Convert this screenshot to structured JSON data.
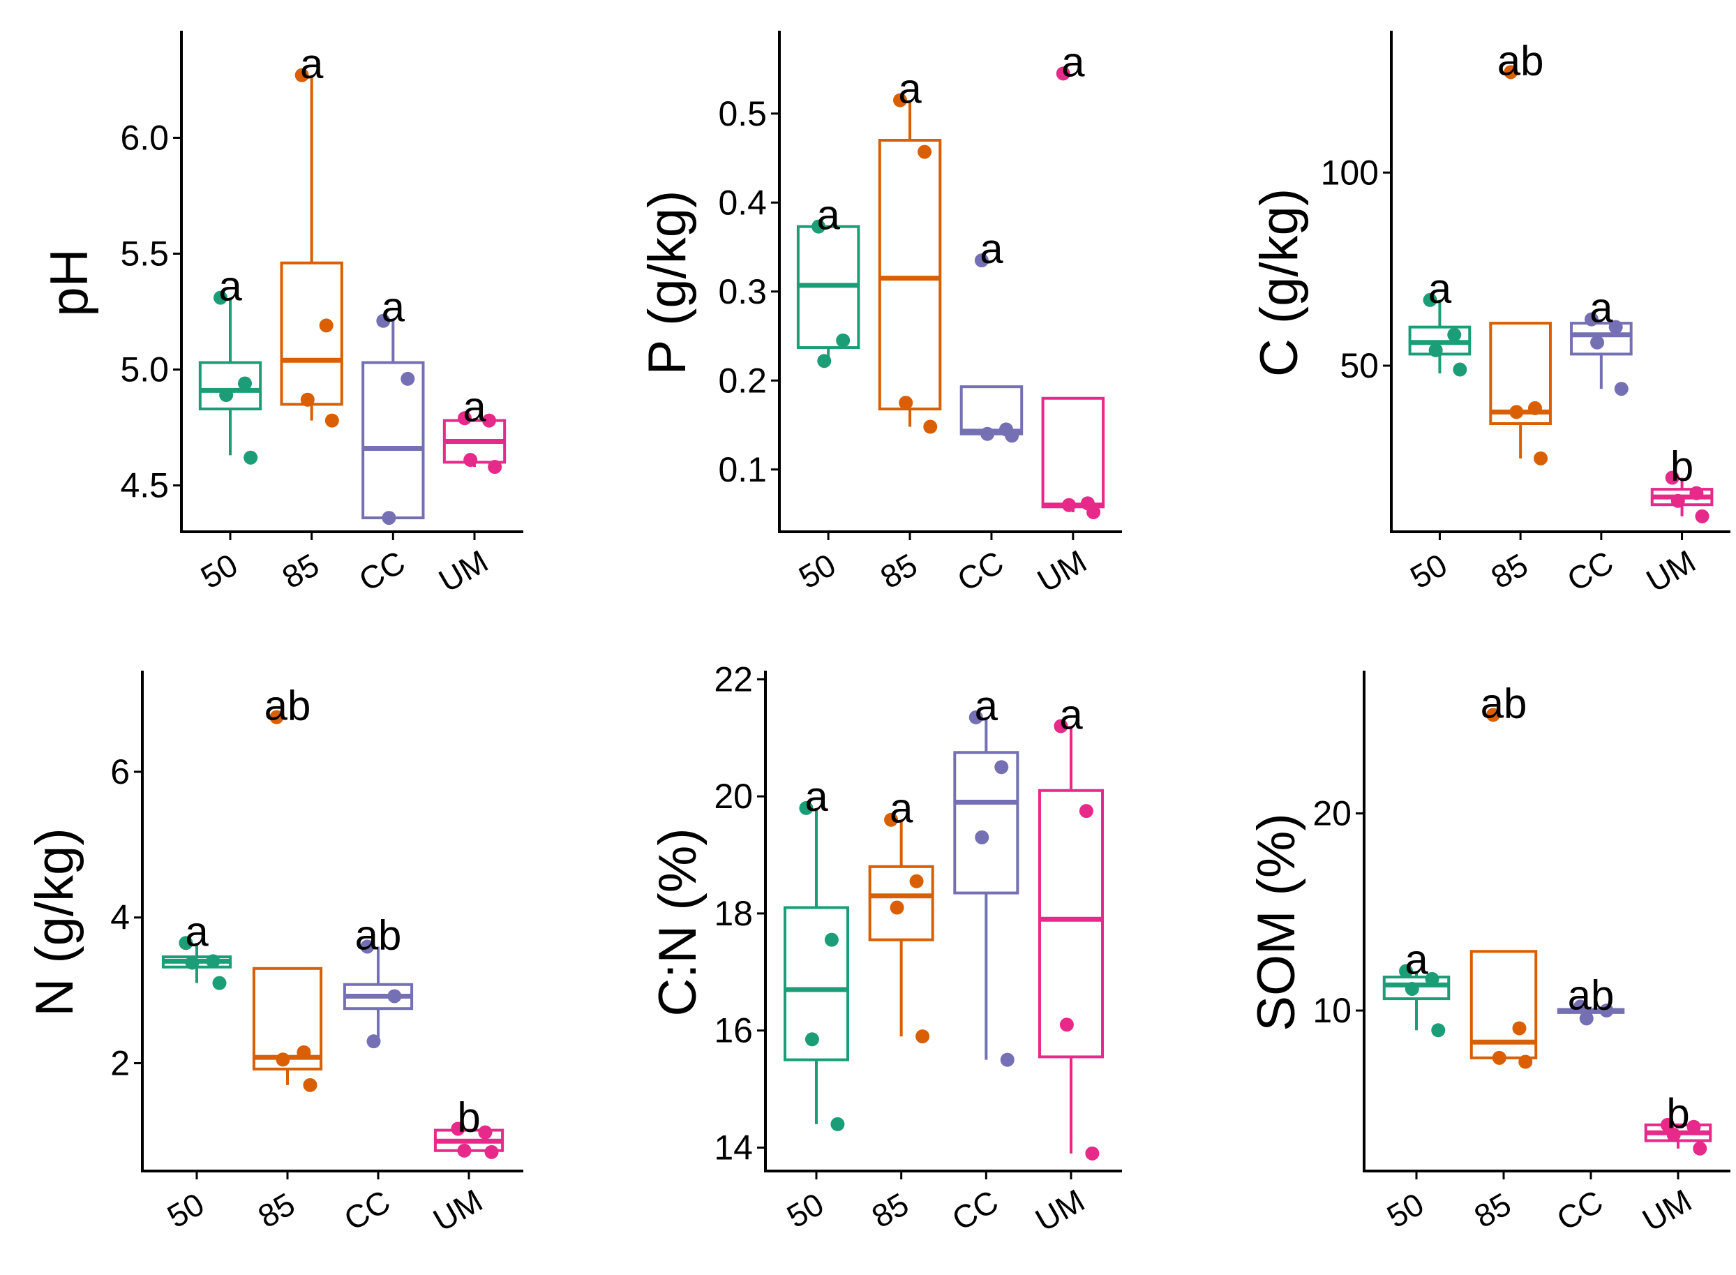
{
  "colors": {
    "50": "#1b9e77",
    "85": "#d95f02",
    "CC": "#7570b3",
    "UM": "#e7298a"
  },
  "chart_data": [
    {
      "type": "box",
      "ylabel": "pH",
      "categories": [
        "50",
        "85",
        "CC",
        "UM"
      ],
      "ylim": [
        4.3,
        6.45
      ],
      "yticks": [
        4.5,
        5.0,
        5.5,
        6.0
      ],
      "ytick_labels": [
        "4.5",
        "5.0",
        "5.5",
        "6.0"
      ],
      "groups": [
        {
          "name": "50",
          "whisker": [
            4.63,
            5.31
          ],
          "q1": 4.83,
          "median": 4.91,
          "q3": 5.03,
          "points": [
            5.31,
            4.94,
            4.89,
            4.62
          ],
          "letter": "a"
        },
        {
          "name": "85",
          "whisker": [
            4.78,
            6.27
          ],
          "q1": 4.85,
          "median": 5.04,
          "q3": 5.46,
          "points": [
            6.27,
            5.19,
            4.87,
            4.78
          ],
          "letter": "a"
        },
        {
          "name": "CC",
          "whisker": [
            4.36,
            5.22
          ],
          "q1": 4.36,
          "median": 4.66,
          "q3": 5.03,
          "points": [
            5.21,
            4.96,
            4.36
          ],
          "letter": "a"
        },
        {
          "name": "UM",
          "whisker": [
            4.58,
            4.79
          ],
          "q1": 4.6,
          "median": 4.69,
          "q3": 4.78,
          "points": [
            4.79,
            4.78,
            4.61,
            4.58
          ],
          "letter": "a"
        }
      ]
    },
    {
      "type": "box",
      "ylabel": "P (g/kg)",
      "categories": [
        "50",
        "85",
        "CC",
        "UM"
      ],
      "ylim": [
        0.03,
        0.59
      ],
      "yticks": [
        0.1,
        0.2,
        0.3,
        0.4,
        0.5
      ],
      "ytick_labels": [
        "0.1",
        "0.2",
        "0.3",
        "0.4",
        "0.5"
      ],
      "groups": [
        {
          "name": "50",
          "whisker": [
            0.222,
            0.373
          ],
          "q1": 0.237,
          "median": 0.307,
          "q3": 0.373,
          "points": [
            0.373,
            0.245,
            0.222
          ],
          "letter": "a"
        },
        {
          "name": "85",
          "whisker": [
            0.148,
            0.515
          ],
          "q1": 0.168,
          "median": 0.315,
          "q3": 0.47,
          "points": [
            0.515,
            0.457,
            0.175,
            0.148
          ],
          "letter": "a"
        },
        {
          "name": "CC",
          "whisker": [
            0.138,
            0.193
          ],
          "q1": 0.14,
          "median": 0.143,
          "q3": 0.193,
          "points": [
            0.335,
            0.145,
            0.14,
            0.138
          ],
          "letter": "a"
        },
        {
          "name": "UM",
          "whisker": [
            0.052,
            0.18
          ],
          "q1": 0.058,
          "median": 0.06,
          "q3": 0.18,
          "points": [
            0.545,
            0.062,
            0.06,
            0.052
          ],
          "letter": "a"
        }
      ]
    },
    {
      "type": "box",
      "ylabel": "C (g/kg)",
      "categories": [
        "50",
        "85",
        "CC",
        "UM"
      ],
      "ylim": [
        7,
        136
      ],
      "yticks": [
        50,
        100
      ],
      "ytick_labels": [
        "50",
        "100"
      ],
      "groups": [
        {
          "name": "50",
          "whisker": [
            48,
            67
          ],
          "q1": 53,
          "median": 56,
          "q3": 60,
          "points": [
            67,
            58,
            54,
            49
          ],
          "letter": "a"
        },
        {
          "name": "85",
          "whisker": [
            26,
            61
          ],
          "q1": 35,
          "median": 38,
          "q3": 61,
          "points": [
            126,
            39,
            38,
            26
          ],
          "letter": "ab"
        },
        {
          "name": "CC",
          "whisker": [
            44,
            61
          ],
          "q1": 53,
          "median": 58,
          "q3": 61,
          "points": [
            62,
            60,
            56,
            44
          ],
          "letter": "a"
        },
        {
          "name": "UM",
          "whisker": [
            11,
            21
          ],
          "q1": 14,
          "median": 16,
          "q3": 18,
          "points": [
            21,
            17,
            15,
            11
          ],
          "letter": "b"
        }
      ]
    },
    {
      "type": "box",
      "ylabel": "N (g/kg)",
      "categories": [
        "50",
        "85",
        "CC",
        "UM"
      ],
      "ylim": [
        0.52,
        7.35
      ],
      "yticks": [
        2,
        4,
        6
      ],
      "ytick_labels": [
        "2",
        "4",
        "6"
      ],
      "groups": [
        {
          "name": "50",
          "whisker": [
            3.1,
            3.65
          ],
          "q1": 3.32,
          "median": 3.4,
          "q3": 3.46,
          "points": [
            3.65,
            3.4,
            3.38,
            3.1
          ],
          "letter": "a"
        },
        {
          "name": "85",
          "whisker": [
            1.7,
            3.3
          ],
          "q1": 1.92,
          "median": 2.08,
          "q3": 3.3,
          "points": [
            6.75,
            2.15,
            2.05,
            1.7
          ],
          "letter": "ab"
        },
        {
          "name": "CC",
          "whisker": [
            2.3,
            3.6
          ],
          "q1": 2.75,
          "median": 2.92,
          "q3": 3.08,
          "points": [
            3.6,
            2.92,
            2.3
          ],
          "letter": "ab"
        },
        {
          "name": "UM",
          "whisker": [
            0.78,
            1.1
          ],
          "q1": 0.8,
          "median": 0.93,
          "q3": 1.08,
          "points": [
            1.1,
            1.05,
            0.8,
            0.78
          ],
          "letter": "b"
        }
      ]
    },
    {
      "type": "box",
      "ylabel": "C:N (%)",
      "categories": [
        "50",
        "85",
        "CC",
        "UM"
      ],
      "ylim": [
        13.6,
        22.1
      ],
      "yticks": [
        14,
        16,
        18,
        20,
        22
      ],
      "ytick_labels": [
        "14",
        "16",
        "18",
        "20",
        "22"
      ],
      "groups": [
        {
          "name": "50",
          "whisker": [
            14.4,
            19.8
          ],
          "q1": 15.5,
          "median": 16.7,
          "q3": 18.1,
          "points": [
            19.8,
            17.55,
            15.85,
            14.4
          ],
          "letter": "a"
        },
        {
          "name": "85",
          "whisker": [
            15.9,
            19.6
          ],
          "q1": 17.55,
          "median": 18.3,
          "q3": 18.8,
          "points": [
            19.6,
            18.55,
            18.1,
            15.9
          ],
          "letter": "a"
        },
        {
          "name": "CC",
          "whisker": [
            15.5,
            21.35
          ],
          "q1": 18.35,
          "median": 19.9,
          "q3": 20.75,
          "points": [
            21.35,
            20.5,
            19.3,
            15.5
          ],
          "letter": "a"
        },
        {
          "name": "UM",
          "whisker": [
            13.9,
            21.2
          ],
          "q1": 15.55,
          "median": 17.9,
          "q3": 20.1,
          "points": [
            21.2,
            19.75,
            16.1,
            13.9
          ],
          "letter": "a"
        }
      ]
    },
    {
      "type": "box",
      "ylabel": "SOM (%)",
      "categories": [
        "50",
        "85",
        "CC",
        "UM"
      ],
      "ylim": [
        1.86,
        27.1
      ],
      "yticks": [
        10,
        20
      ],
      "ytick_labels": [
        "10",
        "20"
      ],
      "groups": [
        {
          "name": "50",
          "whisker": [
            9.0,
            12.0
          ],
          "q1": 10.6,
          "median": 11.3,
          "q3": 11.7,
          "points": [
            12.0,
            11.6,
            11.1,
            9.0
          ],
          "letter": "a"
        },
        {
          "name": "85",
          "whisker": [
            7.5,
            13.0
          ],
          "q1": 7.6,
          "median": 8.4,
          "q3": 13.0,
          "points": [
            25.0,
            9.1,
            7.6,
            7.4
          ],
          "letter": "ab"
        },
        {
          "name": "CC",
          "whisker": [
            9.6,
            10.2
          ],
          "q1": 9.9,
          "median": 10.0,
          "q3": 10.05,
          "points": [
            10.2,
            10.0,
            9.6
          ],
          "letter": "ab"
        },
        {
          "name": "UM",
          "whisker": [
            3.0,
            4.2
          ],
          "q1": 3.4,
          "median": 3.8,
          "q3": 4.2,
          "points": [
            4.2,
            4.1,
            3.7,
            3.0
          ],
          "letter": "b"
        }
      ]
    }
  ]
}
